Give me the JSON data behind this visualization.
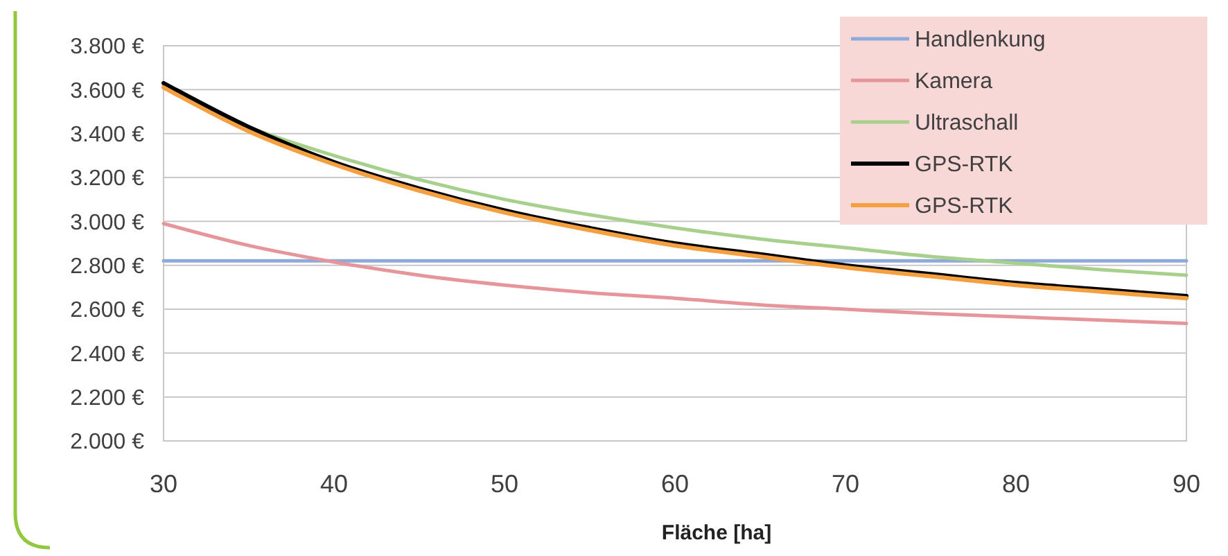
{
  "chart_data": {
    "type": "line",
    "xlabel": "Fläche [ha]",
    "x": [
      30,
      35,
      40,
      45,
      50,
      55,
      60,
      65,
      70,
      75,
      80,
      85,
      90
    ],
    "xlim": [
      30,
      90
    ],
    "xticks": [
      30,
      40,
      50,
      60,
      70,
      80,
      90
    ],
    "ylim": [
      2000,
      3800
    ],
    "yticks": [
      {
        "value": 2000,
        "label": "2.000 €"
      },
      {
        "value": 2200,
        "label": "2.200 €"
      },
      {
        "value": 2400,
        "label": "2.400 €"
      },
      {
        "value": 2600,
        "label": "2.600 €"
      },
      {
        "value": 2800,
        "label": "2.800 €"
      },
      {
        "value": 3000,
        "label": "3.000 €"
      },
      {
        "value": 3200,
        "label": "3.200 €"
      },
      {
        "value": 3400,
        "label": "3.400 €"
      },
      {
        "value": 3600,
        "label": "3.600 €"
      },
      {
        "value": 3800,
        "label": "3.800 €"
      }
    ],
    "grid": "y",
    "legend": "top right",
    "marker": "none",
    "series": [
      {
        "name": "Handlenkung",
        "color": "#8eaadb",
        "values": [
          2820,
          2820,
          2820,
          2820,
          2820,
          2820,
          2820,
          2820,
          2820,
          2820,
          2820,
          2820,
          2820
        ]
      },
      {
        "name": "Kamera",
        "color": "#e6959a",
        "values": [
          2990,
          2890,
          2815,
          2755,
          2710,
          2675,
          2650,
          2620,
          2600,
          2580,
          2565,
          2550,
          2535
        ]
      },
      {
        "name": "Ultraschall",
        "color": "#a8d08d",
        "values": [
          3620,
          3430,
          3300,
          3190,
          3100,
          3030,
          2970,
          2920,
          2880,
          2840,
          2810,
          2780,
          2755
        ]
      },
      {
        "name": "GPS-RTK",
        "color": "#000000",
        "values": [
          3630,
          3430,
          3270,
          3150,
          3050,
          2970,
          2900,
          2850,
          2800,
          2760,
          2720,
          2690,
          2660
        ]
      },
      {
        "name": "GPS-RTK",
        "color": "#f4a040",
        "values": [
          3610,
          3410,
          3260,
          3140,
          3040,
          2960,
          2890,
          2840,
          2790,
          2750,
          2710,
          2680,
          2650
        ]
      }
    ]
  }
}
